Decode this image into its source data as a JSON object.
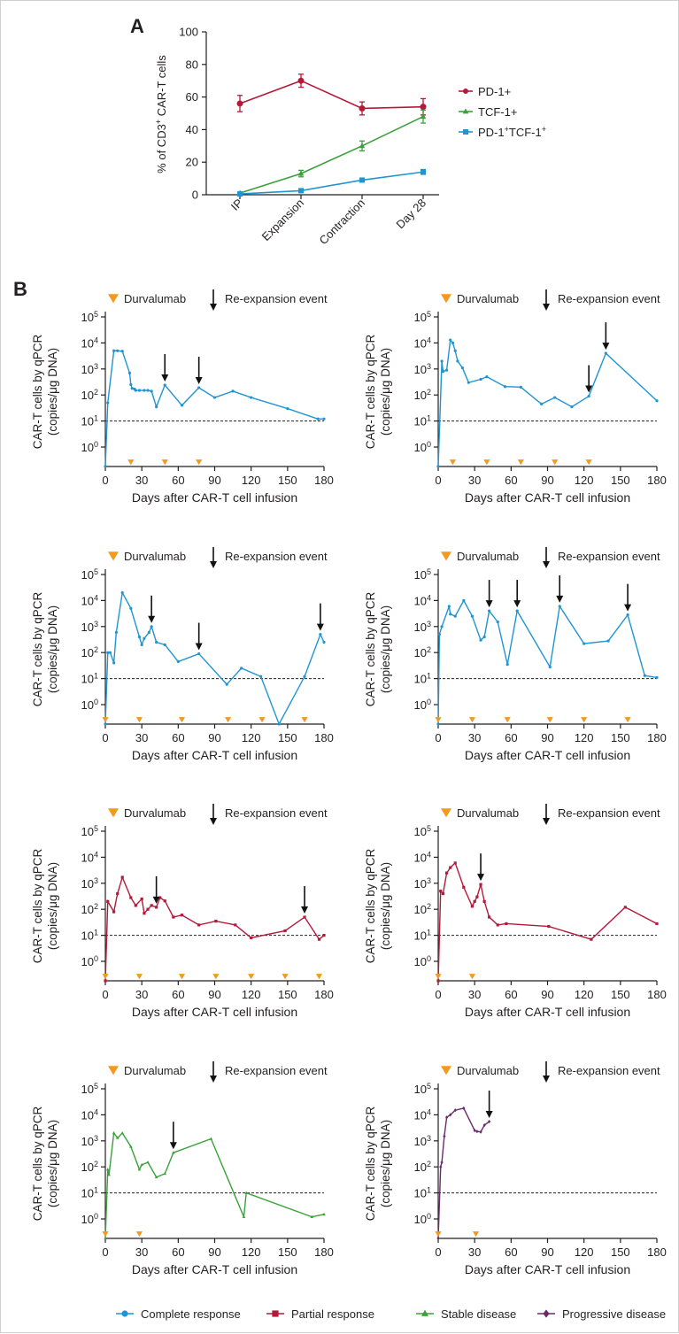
{
  "panel_a": {
    "letter": "A",
    "ylabel_pre": "% of CD3",
    "ylabel_sup": "+",
    "ylabel_post": " CAR-T cells",
    "legend": [
      {
        "label": "PD-1+",
        "color": "#b5193a"
      },
      {
        "label": "TCF-1+",
        "color": "#3aa13a"
      },
      {
        "label": "PD-1",
        "sup1": "+",
        "mid": "TCF-1",
        "sup2": "+",
        "color": "#1f95d2"
      }
    ]
  },
  "panel_b": {
    "letter": "B",
    "legend_durvalumab": "Durvalumab",
    "legend_reexpansion": "Re-expansion event",
    "ylabel_line1": "CAR-T cells by qPCR",
    "ylabel_line2": "(copies/μg DNA)",
    "xlabel": "Days after CAR-T cell infusion",
    "ytick_base": "10",
    "durvalumab_color": "#f39a1e"
  },
  "response_legend": [
    {
      "label": "Complete response",
      "color": "#1f95d2",
      "marker": "circle"
    },
    {
      "label": "Partial response",
      "color": "#b5193a",
      "marker": "square"
    },
    {
      "label": "Stable disease",
      "color": "#3aa13a",
      "marker": "triangle"
    },
    {
      "label": "Progressive disease",
      "color": "#6b2a6b",
      "marker": "diamond"
    }
  ],
  "chart_data": [
    {
      "type": "line",
      "panel": "A",
      "categories": [
        "IP",
        "Expansion",
        "Contraction",
        "Day 28"
      ],
      "ylabel": "% of CD3+ CAR-T cells",
      "ylim": [
        0,
        100
      ],
      "yticks": [
        0,
        20,
        40,
        60,
        80,
        100
      ],
      "legend_position": "right",
      "series": [
        {
          "name": "PD-1+",
          "color": "#b5193a",
          "marker": "circle",
          "values": [
            56,
            70,
            53,
            54
          ],
          "err": [
            5,
            4,
            4,
            5
          ]
        },
        {
          "name": "TCF-1+",
          "color": "#3aa13a",
          "marker": "triangle",
          "values": [
            1,
            13,
            30,
            48
          ],
          "err": [
            0.5,
            2,
            3,
            4
          ]
        },
        {
          "name": "PD-1+TCF-1+",
          "color": "#1f95d2",
          "marker": "square",
          "values": [
            0.5,
            2.5,
            9,
            14
          ],
          "err": [
            0.3,
            0.5,
            1,
            1.5
          ]
        }
      ]
    },
    {
      "type": "line",
      "panel": "B1",
      "response": "Complete response",
      "color": "#1f95d2",
      "marker": "circle",
      "xlim": [
        0,
        180
      ],
      "xticks": [
        0,
        30,
        60,
        90,
        120,
        150,
        180
      ],
      "y_scale": "log",
      "ytick_exponents": [
        0,
        1,
        2,
        3,
        4,
        5
      ],
      "threshold": 10,
      "points": [
        [
          0,
          0.03
        ],
        [
          2,
          50
        ],
        [
          7,
          5000
        ],
        [
          10,
          5000
        ],
        [
          14,
          4800
        ],
        [
          20,
          700
        ],
        [
          21,
          250
        ],
        [
          22,
          180
        ],
        [
          24,
          170
        ],
        [
          25,
          150
        ],
        [
          28,
          150
        ],
        [
          32,
          150
        ],
        [
          35,
          150
        ],
        [
          38,
          140
        ],
        [
          42,
          35
        ],
        [
          49,
          240
        ],
        [
          63,
          40
        ],
        [
          77,
          190
        ],
        [
          90,
          80
        ],
        [
          105,
          140
        ],
        [
          120,
          80
        ],
        [
          150,
          30
        ],
        [
          175,
          12
        ],
        [
          180,
          12
        ]
      ],
      "durvalumab_days": [
        21,
        49,
        77
      ],
      "reexpansion_days": [
        49,
        77
      ]
    },
    {
      "type": "line",
      "panel": "B2",
      "response": "Complete response",
      "color": "#1f95d2",
      "marker": "circle",
      "xlim": [
        0,
        180
      ],
      "xticks": [
        0,
        30,
        60,
        90,
        120,
        150,
        180
      ],
      "y_scale": "log",
      "ytick_exponents": [
        0,
        1,
        2,
        3,
        4,
        5
      ],
      "threshold": 10,
      "points": [
        [
          0,
          0.03
        ],
        [
          3,
          2000
        ],
        [
          4,
          800
        ],
        [
          7,
          900
        ],
        [
          10,
          13000
        ],
        [
          12,
          10000
        ],
        [
          14,
          5000
        ],
        [
          16,
          2000
        ],
        [
          20,
          1100
        ],
        [
          25,
          300
        ],
        [
          35,
          400
        ],
        [
          40,
          500
        ],
        [
          55,
          210
        ],
        [
          68,
          200
        ],
        [
          85,
          45
        ],
        [
          96,
          80
        ],
        [
          110,
          35
        ],
        [
          124,
          90
        ],
        [
          138,
          4000
        ],
        [
          180,
          60
        ]
      ],
      "durvalumab_days": [
        12,
        40,
        68,
        96,
        124
      ],
      "reexpansion_days": [
        124,
        138
      ]
    },
    {
      "type": "line",
      "panel": "B3",
      "response": "Complete response",
      "color": "#1f95d2",
      "marker": "circle",
      "xlim": [
        0,
        180
      ],
      "xticks": [
        0,
        30,
        60,
        90,
        120,
        150,
        180
      ],
      "y_scale": "log",
      "ytick_exponents": [
        0,
        1,
        2,
        3,
        4,
        5
      ],
      "threshold": 10,
      "points": [
        [
          0,
          0.08
        ],
        [
          2,
          100
        ],
        [
          4,
          100
        ],
        [
          7,
          40
        ],
        [
          9,
          600
        ],
        [
          14,
          20000
        ],
        [
          21,
          5000
        ],
        [
          28,
          400
        ],
        [
          30,
          200
        ],
        [
          32,
          350
        ],
        [
          36,
          600
        ],
        [
          38,
          1000
        ],
        [
          42,
          250
        ],
        [
          49,
          200
        ],
        [
          60,
          45
        ],
        [
          77,
          90
        ],
        [
          100,
          6
        ],
        [
          112,
          25
        ],
        [
          128,
          12
        ],
        [
          143,
          0.08
        ],
        [
          164,
          12
        ],
        [
          177,
          500
        ],
        [
          180,
          250
        ]
      ],
      "durvalumab_days": [
        0,
        28,
        63,
        101,
        129,
        164
      ],
      "reexpansion_days": [
        38,
        77,
        177
      ]
    },
    {
      "type": "line",
      "panel": "B4",
      "response": "Complete response",
      "color": "#1f95d2",
      "marker": "circle",
      "xlim": [
        0,
        180
      ],
      "xticks": [
        0,
        30,
        60,
        90,
        120,
        150,
        180
      ],
      "y_scale": "log",
      "ytick_exponents": [
        0,
        1,
        2,
        3,
        4,
        5
      ],
      "threshold": 10,
      "points": [
        [
          0,
          0.05
        ],
        [
          1,
          500
        ],
        [
          3,
          1000
        ],
        [
          9,
          6000
        ],
        [
          10,
          3000
        ],
        [
          14,
          2500
        ],
        [
          21,
          10000
        ],
        [
          28,
          2500
        ],
        [
          35,
          300
        ],
        [
          38,
          400
        ],
        [
          42,
          4000
        ],
        [
          49,
          1500
        ],
        [
          57,
          35
        ],
        [
          65,
          4000
        ],
        [
          92,
          28
        ],
        [
          100,
          6000
        ],
        [
          120,
          220
        ],
        [
          140,
          280
        ],
        [
          156,
          2800
        ],
        [
          170,
          13
        ],
        [
          180,
          11
        ]
      ],
      "durvalumab_days": [
        0,
        28,
        57,
        92,
        120,
        156
      ],
      "reexpansion_days": [
        42,
        65,
        100,
        156
      ]
    },
    {
      "type": "line",
      "panel": "B5",
      "response": "Partial response",
      "color": "#b5193a",
      "marker": "square",
      "xlim": [
        0,
        180
      ],
      "xticks": [
        0,
        30,
        60,
        90,
        120,
        150,
        180
      ],
      "y_scale": "log",
      "ytick_exponents": [
        0,
        1,
        2,
        3,
        4,
        5
      ],
      "threshold": 10,
      "points": [
        [
          0,
          0.03
        ],
        [
          2,
          200
        ],
        [
          7,
          80
        ],
        [
          10,
          400
        ],
        [
          14,
          1700
        ],
        [
          21,
          280
        ],
        [
          25,
          140
        ],
        [
          30,
          250
        ],
        [
          32,
          70
        ],
        [
          35,
          100
        ],
        [
          38,
          140
        ],
        [
          42,
          120
        ],
        [
          45,
          280
        ],
        [
          49,
          210
        ],
        [
          56,
          50
        ],
        [
          63,
          60
        ],
        [
          77,
          25
        ],
        [
          91,
          35
        ],
        [
          107,
          25
        ],
        [
          120,
          8
        ],
        [
          148,
          15
        ],
        [
          164,
          50
        ],
        [
          176,
          7
        ],
        [
          180,
          10
        ]
      ],
      "durvalumab_days": [
        0,
        28,
        63,
        91,
        120,
        148,
        176
      ],
      "reexpansion_days": [
        42,
        164
      ]
    },
    {
      "type": "line",
      "panel": "B6",
      "response": "Partial response",
      "color": "#b5193a",
      "marker": "square",
      "xlim": [
        0,
        180
      ],
      "xticks": [
        0,
        30,
        60,
        90,
        120,
        150,
        180
      ],
      "y_scale": "log",
      "ytick_exponents": [
        0,
        1,
        2,
        3,
        4,
        5
      ],
      "threshold": 10,
      "points": [
        [
          0,
          0.03
        ],
        [
          2,
          500
        ],
        [
          4,
          400
        ],
        [
          7,
          2500
        ],
        [
          10,
          4000
        ],
        [
          14,
          6000
        ],
        [
          21,
          700
        ],
        [
          28,
          130
        ],
        [
          30,
          200
        ],
        [
          32,
          300
        ],
        [
          35,
          900
        ],
        [
          38,
          200
        ],
        [
          42,
          50
        ],
        [
          49,
          25
        ],
        [
          56,
          28
        ],
        [
          91,
          22
        ],
        [
          126,
          7
        ],
        [
          154,
          120
        ],
        [
          180,
          28
        ]
      ],
      "durvalumab_days": [
        0,
        28
      ],
      "reexpansion_days": [
        35
      ]
    },
    {
      "type": "line",
      "panel": "B7",
      "response": "Stable disease",
      "color": "#3aa13a",
      "marker": "triangle",
      "xlim": [
        0,
        180
      ],
      "xticks": [
        0,
        30,
        60,
        90,
        120,
        150,
        180
      ],
      "y_scale": "log",
      "ytick_exponents": [
        0,
        1,
        2,
        3,
        4,
        5
      ],
      "threshold": 10,
      "points": [
        [
          0,
          0.03
        ],
        [
          2,
          80
        ],
        [
          3,
          50
        ],
        [
          7,
          2000
        ],
        [
          10,
          1300
        ],
        [
          14,
          2000
        ],
        [
          21,
          600
        ],
        [
          28,
          80
        ],
        [
          30,
          120
        ],
        [
          35,
          150
        ],
        [
          42,
          40
        ],
        [
          49,
          55
        ],
        [
          56,
          350
        ],
        [
          87,
          1200
        ],
        [
          114,
          1.2
        ],
        [
          116,
          10
        ],
        [
          170,
          1.2
        ],
        [
          180,
          1.5
        ]
      ],
      "durvalumab_days": [
        0,
        28
      ],
      "reexpansion_days": [
        56
      ]
    },
    {
      "type": "line",
      "panel": "B8",
      "response": "Progressive disease",
      "color": "#6b2a6b",
      "marker": "diamond",
      "xlim": [
        0,
        180
      ],
      "xticks": [
        0,
        30,
        60,
        90,
        120,
        150,
        180
      ],
      "y_scale": "log",
      "ytick_exponents": [
        0,
        1,
        2,
        3,
        4,
        5
      ],
      "threshold": 10,
      "points": [
        [
          0,
          0.03
        ],
        [
          2,
          100
        ],
        [
          3,
          150
        ],
        [
          5,
          1500
        ],
        [
          7,
          8000
        ],
        [
          10,
          10000
        ],
        [
          14,
          15000
        ],
        [
          21,
          18000
        ],
        [
          30,
          2500
        ],
        [
          32,
          2300
        ],
        [
          35,
          2200
        ],
        [
          38,
          4000
        ],
        [
          42,
          5500
        ]
      ],
      "durvalumab_days": [
        0,
        31
      ],
      "reexpansion_days": [
        42
      ]
    }
  ]
}
